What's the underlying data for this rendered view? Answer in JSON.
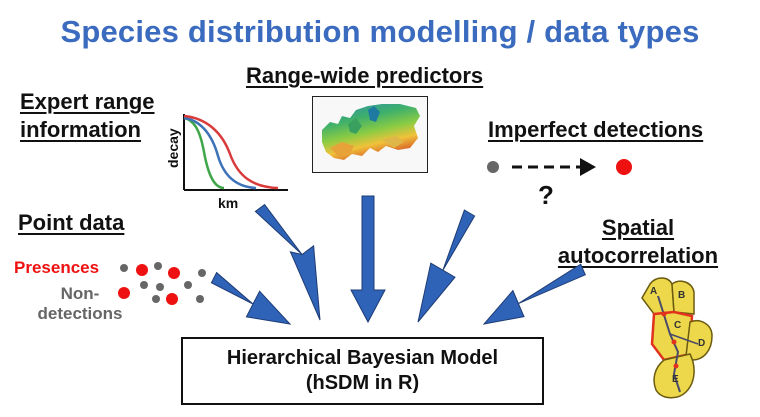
{
  "title": "Species distribution modelling / data types",
  "expert_range": {
    "heading_line1": "Expert range",
    "heading_line2": "information",
    "y_axis": "decay",
    "x_axis": "km"
  },
  "range_wide": {
    "heading": "Range-wide predictors"
  },
  "imperfect": {
    "heading": "Imperfect detections",
    "symbol": "?"
  },
  "point_data": {
    "heading": "Point data",
    "presences_label": "Presences",
    "non_label_line1": "Non-",
    "non_label_line2": "detections"
  },
  "spatial": {
    "heading_line1": "Spatial",
    "heading_line2": "autocorrelation",
    "cells": [
      "A",
      "B",
      "C",
      "D",
      "E"
    ]
  },
  "model": {
    "line1": "Hierarchical Bayesian Model",
    "line2": "(hSDM in R)"
  },
  "colors": {
    "title": "#3b6bbf",
    "arrow_fill": "#2f63b8",
    "arrow_stroke": "#1e3c74",
    "presence": "#ee1111",
    "non_detection": "#666666",
    "cell_fill": "#ecd84a",
    "cell_highlight": "#e0321c"
  }
}
